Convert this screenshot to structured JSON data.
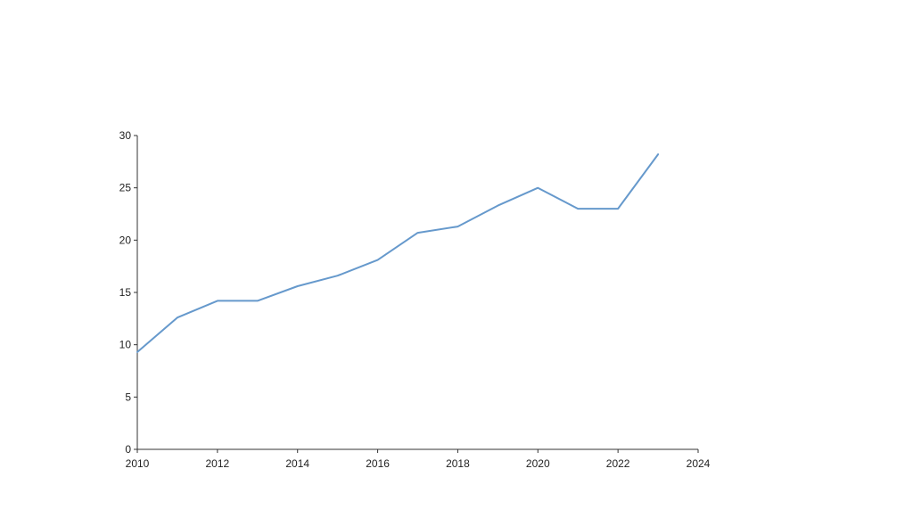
{
  "chart_data": {
    "type": "line",
    "title": "",
    "xlabel": "",
    "ylabel": "",
    "xlim": [
      2010,
      2024
    ],
    "ylim": [
      0,
      30
    ],
    "x_ticks": [
      2010,
      2012,
      2014,
      2016,
      2018,
      2020,
      2022,
      2024
    ],
    "y_ticks": [
      0,
      5,
      10,
      15,
      20,
      25,
      30
    ],
    "grid": false,
    "legend": "none",
    "series": [
      {
        "color": "#6699cc",
        "x": [
          2010,
          2011,
          2012,
          2013,
          2014,
          2015,
          2016,
          2017,
          2018,
          2019,
          2020,
          2021,
          2022,
          2023
        ],
        "y": [
          9.3,
          12.6,
          14.2,
          14.2,
          15.6,
          16.6,
          18.1,
          20.7,
          21.3,
          23.3,
          25.0,
          23.0,
          23.0,
          28.2
        ]
      }
    ]
  }
}
